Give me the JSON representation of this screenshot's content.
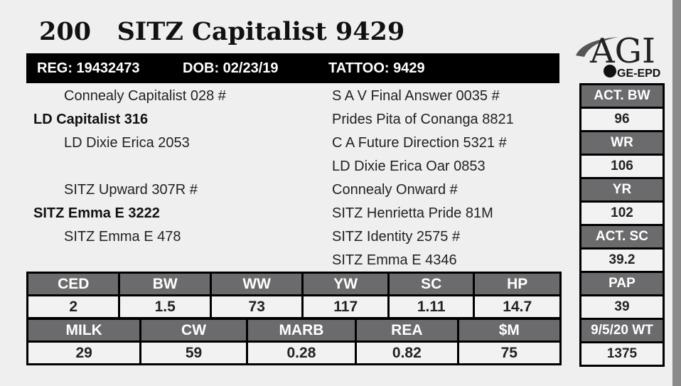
{
  "lot": {
    "number": "200",
    "name": "SITZ Capitalist 9429"
  },
  "info": {
    "reg": "REG: 19432473",
    "dob": "DOB: 02/23/19",
    "tattoo": "TATTOO: 9429"
  },
  "logo": {
    "text": "AGI",
    "sub": "GE-EPD"
  },
  "pedigree": {
    "sire_side": [
      {
        "text": "Connealy Capitalist 028 #",
        "bold": false
      },
      {
        "text": "LD Capitalist 316",
        "bold": true
      },
      {
        "text": "LD Dixie Erica 2053",
        "bold": false
      }
    ],
    "dam_side": [
      {
        "text": "SITZ Upward 307R #",
        "bold": false
      },
      {
        "text": "SITZ Emma E 3222",
        "bold": true
      },
      {
        "text": "SITZ Emma E 478",
        "bold": false
      }
    ],
    "grand": [
      "S A V Final Answer 0035 #",
      "Prides Pita of Conanga 8821",
      "C A Future Direction 5321 #",
      "LD Dixie Erica Oar 0853",
      "Connealy Onward #",
      "SITZ Henrietta Pride 81M",
      "SITZ Identity 2575 #",
      "SITZ Emma E 4346"
    ]
  },
  "epd_row1": [
    {
      "label": "CED",
      "value": "2"
    },
    {
      "label": "BW",
      "value": "1.5"
    },
    {
      "label": "WW",
      "value": "73"
    },
    {
      "label": "YW",
      "value": "117"
    },
    {
      "label": "SC",
      "value": "1.11"
    },
    {
      "label": "HP",
      "value": "14.7"
    }
  ],
  "epd_row2": [
    {
      "label": "MILK",
      "value": "29"
    },
    {
      "label": "CW",
      "value": "59"
    },
    {
      "label": "MARB",
      "value": "0.28"
    },
    {
      "label": "REA",
      "value": "0.82"
    },
    {
      "label": "$M",
      "value": "75"
    }
  ],
  "actuals": [
    {
      "label": "ACT. BW",
      "value": "96"
    },
    {
      "label": "WR",
      "value": "106"
    },
    {
      "label": "YR",
      "value": "102"
    },
    {
      "label": "ACT. SC",
      "value": "39.2"
    },
    {
      "label": "PAP",
      "value": "39"
    },
    {
      "label": "9/5/20 WT",
      "value": "1375"
    }
  ],
  "colors": {
    "header": "#6b6b6d",
    "bar": "#000000"
  }
}
